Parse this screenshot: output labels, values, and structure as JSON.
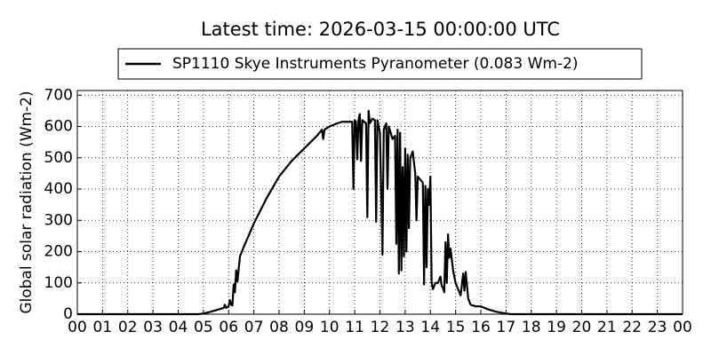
{
  "chart_data": {
    "type": "line",
    "title": "Latest time: 2026-03-15 00:00:00 UTC",
    "y_label": "Global solar radiation (Wm-2)",
    "legend": "top",
    "grid": true,
    "xlim": [
      0,
      24
    ],
    "ylim": [
      0,
      715
    ],
    "xticks": [
      {
        "value": 0,
        "label": "00"
      },
      {
        "value": 1,
        "label": "01"
      },
      {
        "value": 2,
        "label": "02"
      },
      {
        "value": 3,
        "label": "03"
      },
      {
        "value": 4,
        "label": "04"
      },
      {
        "value": 5,
        "label": "05"
      },
      {
        "value": 6,
        "label": "06"
      },
      {
        "value": 7,
        "label": "07"
      },
      {
        "value": 8,
        "label": "08"
      },
      {
        "value": 9,
        "label": "09"
      },
      10,
      11,
      12,
      13,
      14,
      15,
      16,
      17,
      18,
      19,
      20,
      21,
      22,
      23,
      {
        "value": 24,
        "label": "00"
      }
    ],
    "yticks": [
      0,
      100,
      200,
      300,
      400,
      500,
      600,
      700
    ],
    "x": [
      0,
      4.8,
      5.0,
      5.3,
      5.6,
      5.8,
      5.85,
      5.9,
      6.0,
      6.05,
      6.1,
      6.15,
      6.2,
      6.25,
      6.3,
      6.35,
      6.45,
      6.6,
      7.0,
      7.5,
      8.0,
      8.5,
      9.0,
      9.5,
      9.7,
      9.75,
      9.8,
      10.0,
      10.3,
      10.5,
      10.9,
      10.95,
      11.0,
      11.05,
      11.1,
      11.15,
      11.2,
      11.25,
      11.3,
      11.45,
      11.5,
      11.55,
      11.6,
      11.7,
      11.8,
      11.85,
      11.9,
      12.0,
      12.1,
      12.15,
      12.25,
      12.3,
      12.35,
      12.5,
      12.6,
      12.65,
      12.7,
      12.75,
      12.8,
      12.85,
      12.9,
      12.95,
      13.0,
      13.05,
      13.1,
      13.15,
      13.2,
      13.3,
      13.4,
      13.45,
      13.5,
      13.6,
      13.7,
      13.75,
      13.8,
      13.85,
      13.9,
      13.95,
      14.0,
      14.05,
      14.1,
      14.2,
      14.3,
      14.4,
      14.45,
      14.5,
      14.55,
      14.6,
      14.65,
      14.7,
      14.75,
      14.8,
      14.9,
      15.0,
      15.1,
      15.2,
      15.3,
      15.35,
      15.4,
      15.5,
      15.6,
      15.8,
      16.0,
      16.3,
      16.6,
      17.0,
      17.2,
      24
    ],
    "series": [
      {
        "name": "SP1110 Skye Instruments Pyranometer (0.083 Wm-2)",
        "color": "#000000",
        "values": [
          0,
          0,
          2,
          8,
          15,
          20,
          30,
          20,
          25,
          45,
          30,
          28,
          95,
          70,
          140,
          105,
          185,
          215,
          290,
          370,
          440,
          490,
          530,
          570,
          590,
          560,
          590,
          600,
          610,
          615,
          615,
          400,
          620,
          615,
          495,
          620,
          640,
          490,
          620,
          610,
          310,
          650,
          610,
          625,
          620,
          295,
          620,
          580,
          190,
          590,
          610,
          400,
          600,
          560,
          570,
          225,
          590,
          130,
          580,
          140,
          470,
          185,
          530,
          200,
          510,
          275,
          500,
          520,
          450,
          300,
          440,
          430,
          420,
          95,
          410,
          150,
          400,
          350,
          440,
          100,
          80,
          100,
          100,
          120,
          90,
          85,
          70,
          230,
          100,
          255,
          180,
          210,
          140,
          100,
          80,
          60,
          130,
          75,
          135,
          50,
          30,
          25,
          25,
          15,
          8,
          2,
          0,
          0
        ]
      }
    ]
  }
}
